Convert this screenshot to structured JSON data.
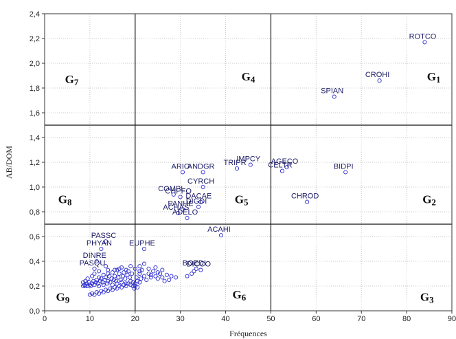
{
  "chart_data": {
    "type": "scatter",
    "xlabel": "Fréquences",
    "ylabel": "AB/DOM",
    "xlim": [
      0,
      90
    ],
    "ylim": [
      0,
      2.4
    ],
    "xticks": [
      0,
      10,
      20,
      30,
      40,
      50,
      60,
      70,
      80,
      90
    ],
    "yticks": [
      "0,0",
      "0,2",
      "0,4",
      "0,6",
      "0,8",
      "1,0",
      "1,2",
      "1,4",
      "1,6",
      "1,8",
      "2,0",
      "2,2",
      "2,4"
    ],
    "grid": true,
    "point_color": "#2b2bd0",
    "divider_lines": {
      "x": [
        20,
        50
      ],
      "y": [
        0.7,
        1.5
      ]
    },
    "groups": [
      {
        "label": "G7",
        "x": 6,
        "y": 1.84
      },
      {
        "label": "G4",
        "x": 45,
        "y": 1.86
      },
      {
        "label": "G1",
        "x": 86,
        "y": 1.86
      },
      {
        "label": "G8",
        "x": 4.5,
        "y": 0.87
      },
      {
        "label": "G5",
        "x": 43.5,
        "y": 0.87
      },
      {
        "label": "G2",
        "x": 85,
        "y": 0.87
      },
      {
        "label": "G9",
        "x": 4,
        "y": 0.08
      },
      {
        "label": "G6",
        "x": 43,
        "y": 0.1
      },
      {
        "label": "G3",
        "x": 84.5,
        "y": 0.08
      }
    ],
    "labeled_points": [
      {
        "name": "ROTCO",
        "x": 84,
        "y": 2.17
      },
      {
        "name": "CROHI",
        "x": 74,
        "y": 1.86
      },
      {
        "name": "SPIAN",
        "x": 64,
        "y": 1.73
      },
      {
        "name": "BIDPI",
        "x": 66.5,
        "y": 1.12
      },
      {
        "name": "CHROD",
        "x": 58,
        "y": 0.88
      },
      {
        "name": "AGECO",
        "x": 53.5,
        "y": 1.16
      },
      {
        "name": "CELTR",
        "x": 52.5,
        "y": 1.13
      },
      {
        "name": "IMPCY",
        "x": 45.5,
        "y": 1.18
      },
      {
        "name": "TRIPR",
        "x": 42.5,
        "y": 1.15
      },
      {
        "name": "ANDGR",
        "x": 35,
        "y": 1.12
      },
      {
        "name": "ARIO",
        "x": 30.5,
        "y": 1.12
      },
      {
        "name": "CYRCH",
        "x": 35,
        "y": 1.0
      },
      {
        "name": "COMPL",
        "x": 28.5,
        "y": 0.94
      },
      {
        "name": "CHPFO",
        "x": 30,
        "y": 0.92
      },
      {
        "name": "DACAE",
        "x": 34.5,
        "y": 0.88
      },
      {
        "name": "PANHE",
        "x": 30.5,
        "y": 0.82
      },
      {
        "name": "DIGDI",
        "x": 34,
        "y": 0.84
      },
      {
        "name": "ACHAS",
        "x": 29.5,
        "y": 0.79
      },
      {
        "name": "ADELO",
        "x": 31.5,
        "y": 0.75
      },
      {
        "name": "ACAHI",
        "x": 39,
        "y": 0.61
      },
      {
        "name": "PASSC",
        "x": 13.5,
        "y": 0.56
      },
      {
        "name": "PHYAN",
        "x": 12.5,
        "y": 0.5
      },
      {
        "name": "EUPHE",
        "x": 22,
        "y": 0.5
      },
      {
        "name": "DINRE",
        "x": 11.5,
        "y": 0.4
      },
      {
        "name": "PASQU",
        "x": 11,
        "y": 0.34
      },
      {
        "name": "BOEDI",
        "x": 33.5,
        "y": 0.34
      },
      {
        "name": "DICCO",
        "x": 34.5,
        "y": 0.33
      }
    ],
    "points": [
      [
        8.5,
        0.2
      ],
      [
        8.8,
        0.21
      ],
      [
        9,
        0.2
      ],
      [
        9.3,
        0.22
      ],
      [
        9.5,
        0.2
      ],
      [
        9.8,
        0.23
      ],
      [
        10,
        0.21
      ],
      [
        10.2,
        0.2
      ],
      [
        10.5,
        0.22
      ],
      [
        10.8,
        0.24
      ],
      [
        11,
        0.21
      ],
      [
        11.3,
        0.23
      ],
      [
        11.5,
        0.25
      ],
      [
        11.8,
        0.22
      ],
      [
        12,
        0.2
      ],
      [
        12.3,
        0.24
      ],
      [
        12.5,
        0.26
      ],
      [
        12.8,
        0.23
      ],
      [
        13,
        0.21
      ],
      [
        13.3,
        0.25
      ],
      [
        13.5,
        0.27
      ],
      [
        13.8,
        0.22
      ],
      [
        14,
        0.24
      ],
      [
        14.3,
        0.28
      ],
      [
        14.5,
        0.23
      ],
      [
        14.8,
        0.26
      ],
      [
        15,
        0.21
      ],
      [
        15.3,
        0.25
      ],
      [
        15.5,
        0.28
      ],
      [
        15.8,
        0.24
      ],
      [
        16,
        0.22
      ],
      [
        16.3,
        0.27
      ],
      [
        16.5,
        0.3
      ],
      [
        16.8,
        0.25
      ],
      [
        17,
        0.23
      ],
      [
        17.3,
        0.28
      ],
      [
        17.5,
        0.31
      ],
      [
        17.8,
        0.26
      ],
      [
        18,
        0.22
      ],
      [
        18.3,
        0.29
      ],
      [
        18.5,
        0.32
      ],
      [
        18.8,
        0.27
      ],
      [
        19,
        0.24
      ],
      [
        19.3,
        0.3
      ],
      [
        19.5,
        0.2
      ],
      [
        19.8,
        0.18
      ],
      [
        20,
        0.22
      ],
      [
        20.3,
        0.27
      ],
      [
        20.5,
        0.24
      ],
      [
        21,
        0.3
      ],
      [
        21.3,
        0.26
      ],
      [
        21.5,
        0.33
      ],
      [
        22,
        0.28
      ],
      [
        22.5,
        0.25
      ],
      [
        23,
        0.3
      ],
      [
        23.5,
        0.27
      ],
      [
        24,
        0.32
      ],
      [
        24.5,
        0.28
      ],
      [
        25,
        0.26
      ],
      [
        25.5,
        0.3
      ],
      [
        26,
        0.27
      ],
      [
        26.5,
        0.24
      ],
      [
        27,
        0.29
      ],
      [
        10,
        0.13
      ],
      [
        10.5,
        0.14
      ],
      [
        11,
        0.13
      ],
      [
        11.5,
        0.15
      ],
      [
        12,
        0.14
      ],
      [
        12.5,
        0.16
      ],
      [
        13,
        0.15
      ],
      [
        13.5,
        0.17
      ],
      [
        14,
        0.16
      ],
      [
        14.5,
        0.18
      ],
      [
        15,
        0.17
      ],
      [
        15.5,
        0.19
      ],
      [
        16,
        0.18
      ],
      [
        16.5,
        0.2
      ],
      [
        17,
        0.19
      ],
      [
        17.5,
        0.21
      ],
      [
        18,
        0.2
      ],
      [
        18.5,
        0.22
      ],
      [
        19,
        0.21
      ],
      [
        19.5,
        0.23
      ],
      [
        20,
        0.2
      ],
      [
        20.5,
        0.19
      ],
      [
        21,
        0.23
      ],
      [
        11,
        0.3
      ],
      [
        12,
        0.32
      ],
      [
        10.5,
        0.28
      ],
      [
        9.5,
        0.26
      ],
      [
        21,
        0.36
      ],
      [
        23,
        0.34
      ],
      [
        25,
        0.31
      ],
      [
        26,
        0.33
      ],
      [
        22,
        0.38
      ],
      [
        32.5,
        0.3
      ],
      [
        33,
        0.32
      ],
      [
        31.5,
        0.28
      ],
      [
        13.5,
        0.36
      ],
      [
        14,
        0.33
      ],
      [
        15,
        0.31
      ],
      [
        16,
        0.33
      ],
      [
        17,
        0.35
      ],
      [
        18,
        0.33
      ],
      [
        19,
        0.36
      ],
      [
        20,
        0.34
      ],
      [
        21,
        0.32
      ],
      [
        9,
        0.24
      ],
      [
        8.5,
        0.23
      ],
      [
        12,
        0.27
      ],
      [
        13,
        0.29
      ],
      [
        14,
        0.3
      ],
      [
        15.5,
        0.33
      ],
      [
        16.5,
        0.34
      ],
      [
        23.5,
        0.29
      ],
      [
        24.5,
        0.35
      ],
      [
        27.5,
        0.25
      ],
      [
        28,
        0.28
      ],
      [
        29,
        0.27
      ]
    ]
  }
}
